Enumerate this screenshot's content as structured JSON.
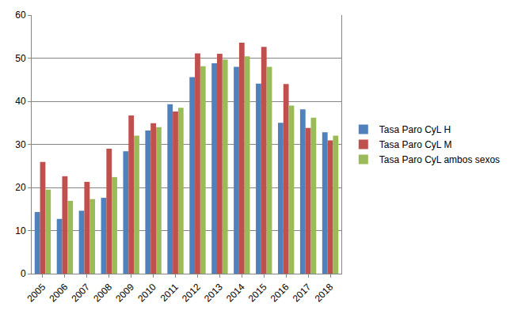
{
  "chart_data": {
    "type": "bar",
    "categories": [
      "2005",
      "2006",
      "2007",
      "2008",
      "2009",
      "2010",
      "2011",
      "2012",
      "2013",
      "2014",
      "2015",
      "2016",
      "2017",
      "2018"
    ],
    "series": [
      {
        "name": "Tasa Paro CyL H",
        "color": "#4F81BD",
        "values": [
          14.3,
          12.7,
          14.6,
          17.6,
          28.4,
          33.2,
          39.3,
          45.6,
          48.8,
          48.0,
          44.1,
          35.0,
          38.1,
          32.8
        ]
      },
      {
        "name": "Tasa Paro CyL M",
        "color": "#C0504D",
        "values": [
          25.9,
          22.6,
          21.3,
          29.0,
          36.7,
          34.9,
          37.6,
          51.1,
          51.0,
          53.6,
          52.6,
          44.0,
          33.8,
          30.9
        ]
      },
      {
        "name": "Tasa Paro CyL ambos sexos",
        "color": "#9BBB59",
        "values": [
          19.5,
          16.9,
          17.3,
          22.4,
          32.0,
          34.0,
          38.5,
          48.1,
          49.7,
          50.4,
          48.0,
          39.0,
          36.2,
          32.0
        ]
      }
    ],
    "ylim": [
      0,
      60
    ],
    "yticks": [
      0,
      10,
      20,
      30,
      40,
      50,
      60
    ],
    "grid": true,
    "legend": "right"
  }
}
